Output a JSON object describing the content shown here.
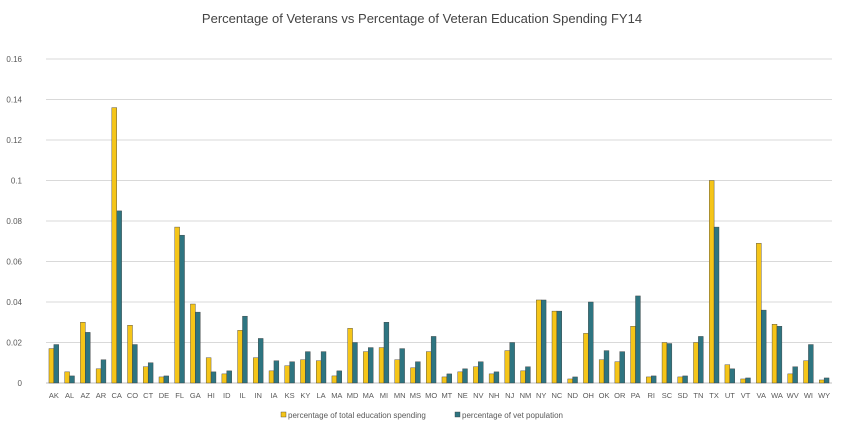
{
  "chart_data": {
    "type": "bar",
    "title": "Percentage of Veterans vs Percentage of Veteran Education Spending FY14",
    "xlabel": "",
    "ylabel": "",
    "ylim": [
      0,
      0.16
    ],
    "yticks": [
      "0",
      "0.02",
      "0.04",
      "0.06",
      "0.08",
      "0.1",
      "0.12",
      "0.14",
      "0.16"
    ],
    "grid": true,
    "legend_position": "bottom",
    "categories": [
      "AK",
      "AL",
      "AZ",
      "AR",
      "CA",
      "CO",
      "CT",
      "DE",
      "FL",
      "GA",
      "HI",
      "ID",
      "IL",
      "IN",
      "IA",
      "KS",
      "KY",
      "LA",
      "MA",
      "MD",
      "MA",
      "MI",
      "MN",
      "MS",
      "MO",
      "MT",
      "NE",
      "NV",
      "NH",
      "NJ",
      "NM",
      "NY",
      "NC",
      "ND",
      "OH",
      "OK",
      "OR",
      "PA",
      "RI",
      "SC",
      "SD",
      "TN",
      "TX",
      "UT",
      "VT",
      "VA",
      "WA",
      "WV",
      "WI",
      "WY"
    ],
    "series": [
      {
        "name": "percentage of total education spending",
        "color": "#F5C518",
        "values": [
          0.017,
          0.0055,
          0.03,
          0.007,
          0.136,
          0.0285,
          0.008,
          0.003,
          0.077,
          0.039,
          0.0125,
          0.0045,
          0.026,
          0.0125,
          0.006,
          0.0085,
          0.0115,
          0.011,
          0.0035,
          0.027,
          0.0155,
          0.0175,
          0.0115,
          0.0075,
          0.0155,
          0.003,
          0.0055,
          0.008,
          0.0045,
          0.016,
          0.006,
          0.041,
          0.0355,
          0.002,
          0.0245,
          0.0115,
          0.0105,
          0.028,
          0.003,
          0.02,
          0.003,
          0.02,
          0.1,
          0.009,
          0.002,
          0.069,
          0.029,
          0.0045,
          0.011,
          0.0015
        ]
      },
      {
        "name": "percentage of vet population",
        "color": "#2E7581",
        "values": [
          0.019,
          0.0035,
          0.025,
          0.0115,
          0.085,
          0.019,
          0.01,
          0.0035,
          0.073,
          0.035,
          0.0055,
          0.006,
          0.033,
          0.022,
          0.011,
          0.0105,
          0.0155,
          0.0155,
          0.006,
          0.02,
          0.0175,
          0.03,
          0.017,
          0.0105,
          0.023,
          0.0045,
          0.007,
          0.0105,
          0.0055,
          0.02,
          0.008,
          0.041,
          0.0355,
          0.003,
          0.04,
          0.016,
          0.0155,
          0.043,
          0.0035,
          0.0195,
          0.0035,
          0.023,
          0.077,
          0.007,
          0.0025,
          0.036,
          0.028,
          0.008,
          0.019,
          0.0025
        ]
      }
    ]
  }
}
